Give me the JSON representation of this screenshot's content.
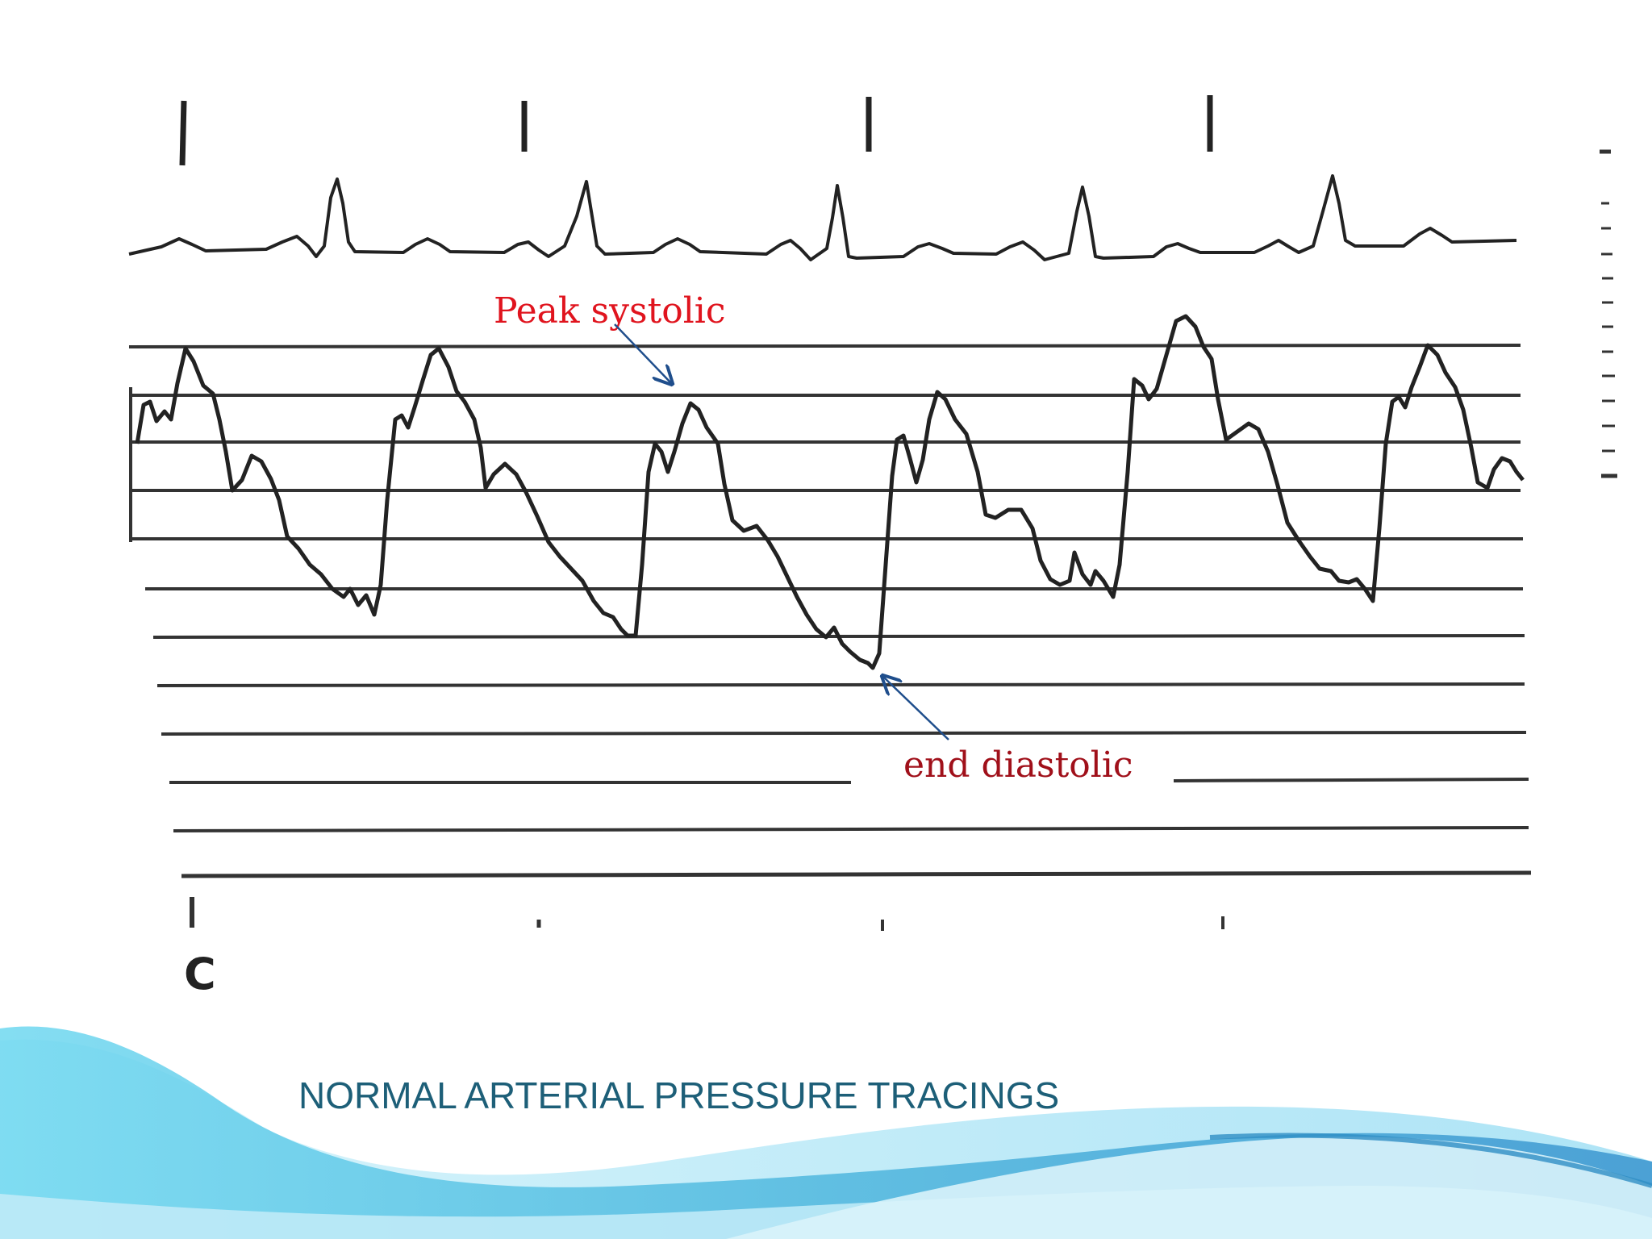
{
  "annotations": {
    "peak_systolic": "Peak systolic",
    "end_diastolic": "end diastolic"
  },
  "channel_letter": "C",
  "slide": {
    "title": "NORMAL  ARTERIAL PRESSURE TRACINGS"
  },
  "colors": {
    "trace": "#222222",
    "grid": "#333333",
    "arrow": "#1f4e8c",
    "peak_label": "#e0141e",
    "end_label": "#a0101a",
    "title": "#1d5f78",
    "wave_light": "#9fe3f3",
    "wave_mid": "#52bfe0",
    "wave_dark": "#2f8fc4"
  }
}
